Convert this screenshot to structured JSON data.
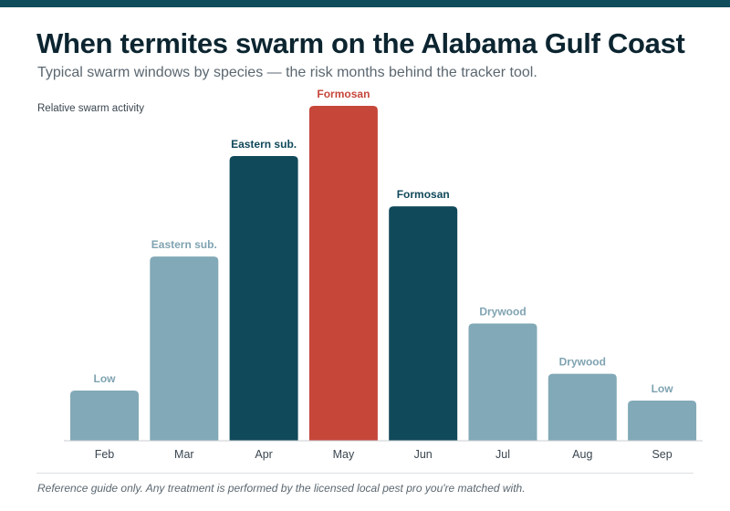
{
  "header": {
    "title": "When termites swarm on the Alabama Gulf Coast",
    "subtitle": "Typical swarm windows by species — the risk months behind the tracker tool."
  },
  "footer": {
    "note": "Reference guide only. Any treatment is performed by the licensed local pest pro you're matched with."
  },
  "colors": {
    "accent_bar": "#0f4c5c",
    "low": "#82a9b7",
    "high": "#10495a",
    "peak": "#c6463a",
    "low_label": "#7fa3b1"
  },
  "chart_data": {
    "type": "bar",
    "title": "When termites swarm on the Alabama Gulf Coast",
    "ylabel": "Relative swarm activity",
    "xlabel": "",
    "ylim": [
      0,
      100
    ],
    "grid": false,
    "categories": [
      "Feb",
      "Mar",
      "Apr",
      "May",
      "Jun",
      "Jul",
      "Aug",
      "Sep"
    ],
    "values": [
      15,
      55,
      85,
      100,
      70,
      35,
      20,
      12
    ],
    "labels": [
      "Low",
      "Eastern sub.",
      "Eastern sub.",
      "Formosan",
      "Formosan",
      "Drywood",
      "Drywood",
      "Low"
    ],
    "levels": [
      "low",
      "low",
      "high",
      "peak",
      "high",
      "low",
      "low",
      "low"
    ]
  }
}
